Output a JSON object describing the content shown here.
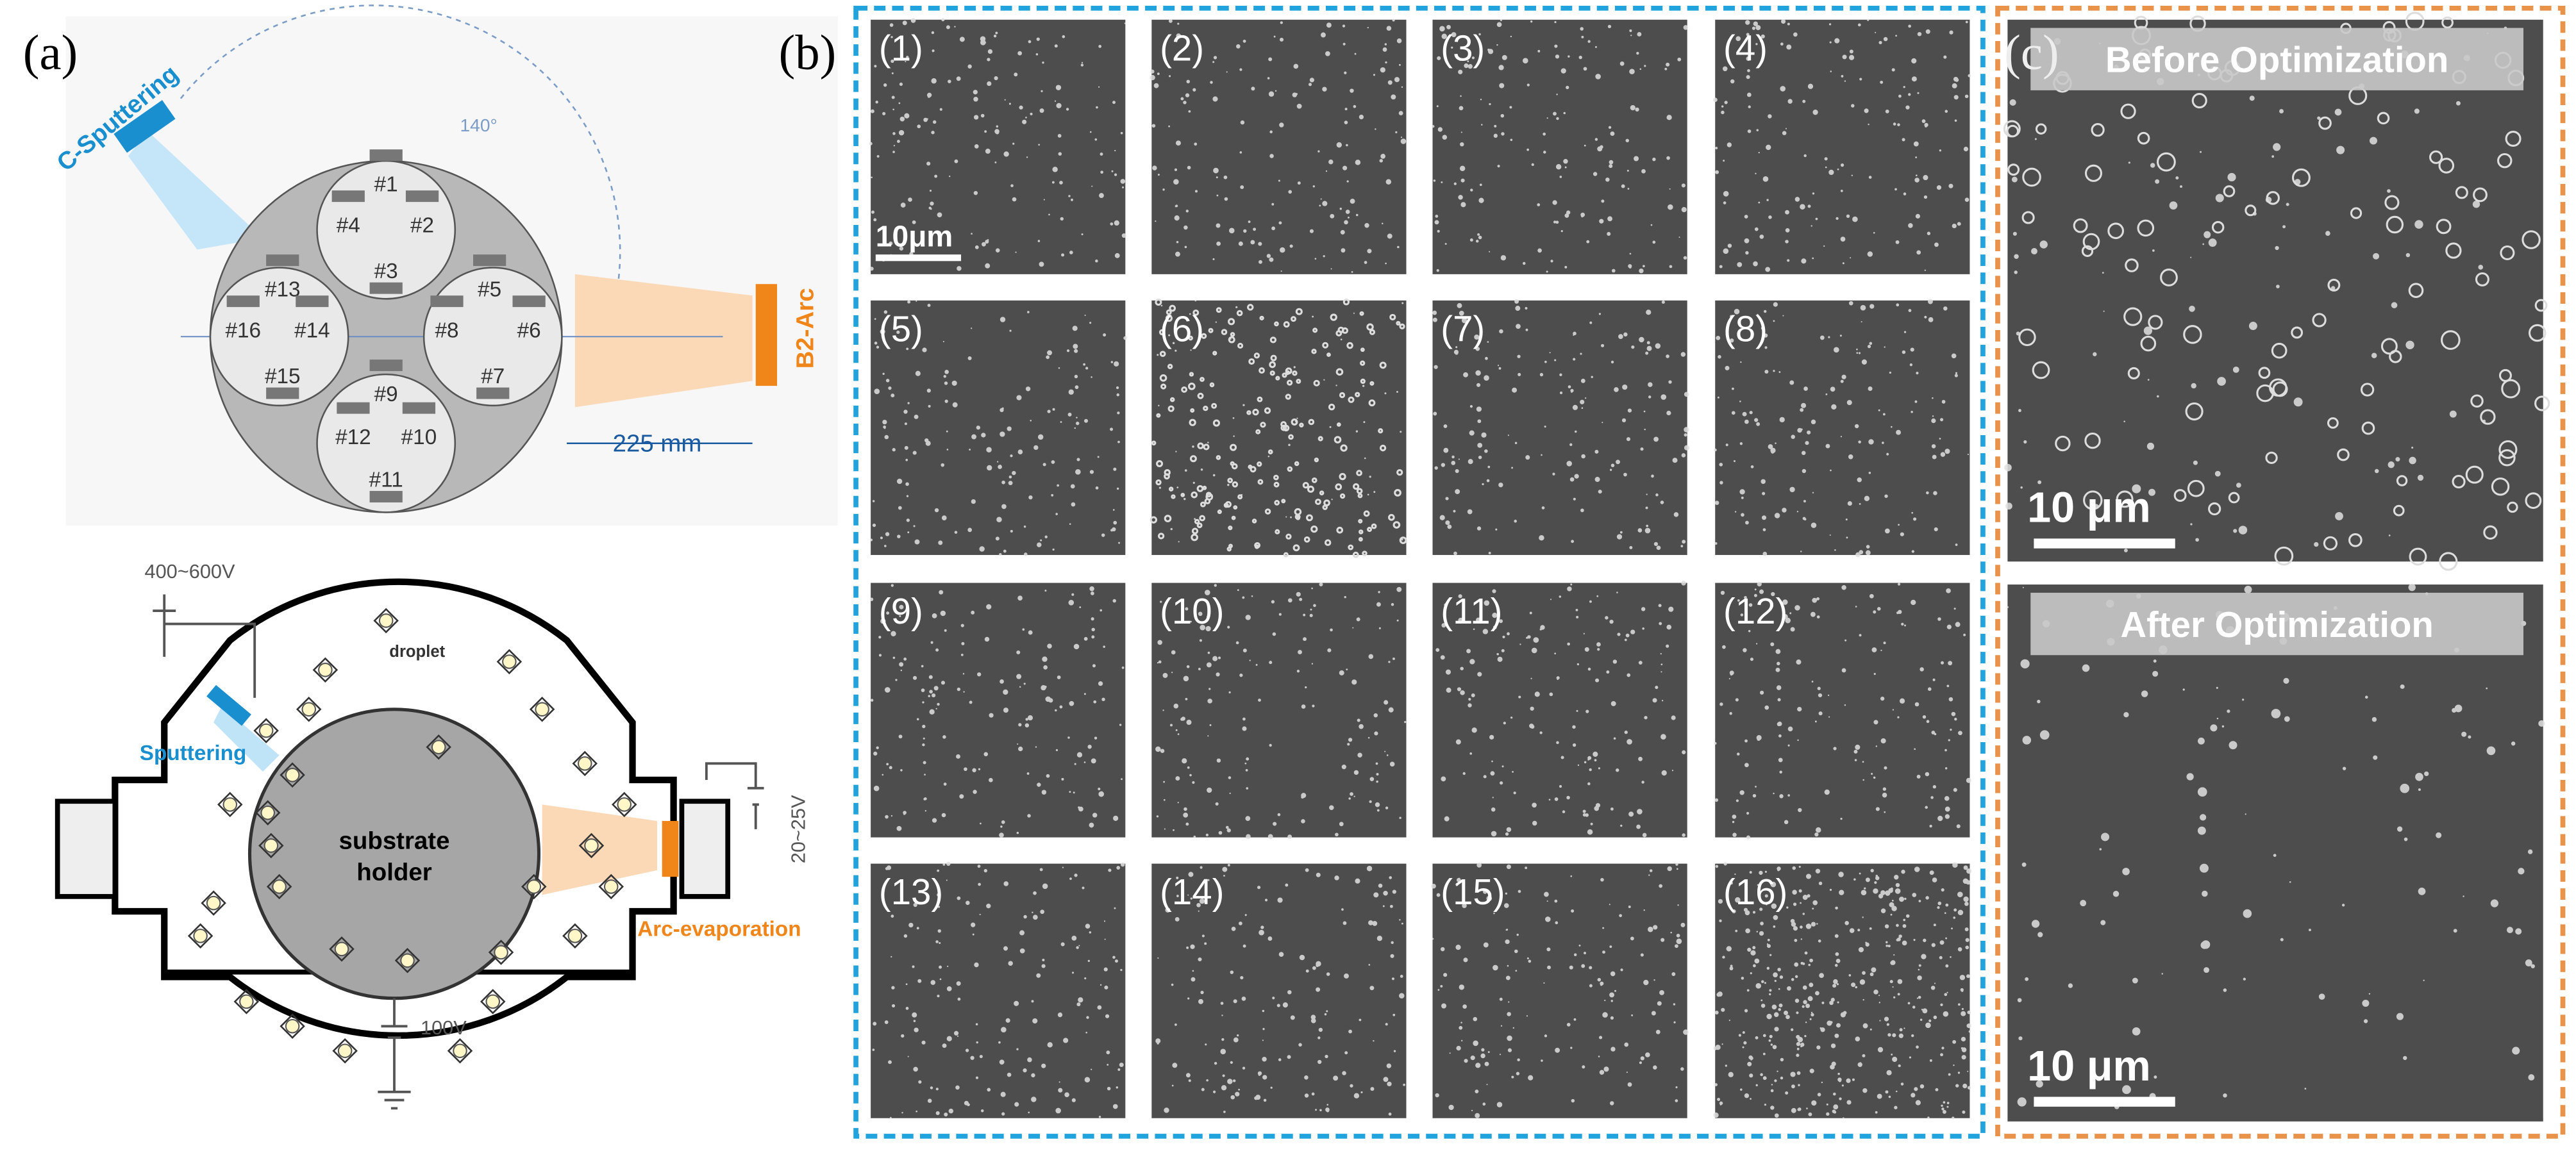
{
  "panel_a": {
    "label": "(a)",
    "top_diagram": {
      "source_left": "C-Sputtering",
      "angle": "140°",
      "positions": [
        "#1",
        "#2",
        "#3",
        "#4",
        "#5",
        "#6",
        "#7",
        "#8",
        "#9",
        "#10",
        "#11",
        "#12",
        "#13",
        "#14",
        "#15",
        "#16"
      ],
      "source_right": "B2-Arc",
      "distance": "225 mm"
    },
    "bottom_diagram": {
      "sputter_voltage": "400~600V",
      "droplet": "droplet",
      "sputtering": "Sputtering",
      "holder": [
        "substrate",
        "holder"
      ],
      "arc": "Arc-evaporation",
      "arc_voltage": "20~25V",
      "bias": "100V"
    }
  },
  "panel_b": {
    "label": "(b)",
    "images": [
      "(1)",
      "(2)",
      "(3)",
      "(4)",
      "(5)",
      "(6)",
      "(7)",
      "(8)",
      "(9)",
      "(10)",
      "(11)",
      "(12)",
      "(13)",
      "(14)",
      "(15)",
      "(16)"
    ],
    "scale_bar": "10μm"
  },
  "panel_c": {
    "label": "(c)",
    "before": {
      "title": "Before Optimization",
      "scale_bar": "10 μm"
    },
    "after": {
      "title": "After Optimization",
      "scale_bar": "10 μm"
    }
  }
}
